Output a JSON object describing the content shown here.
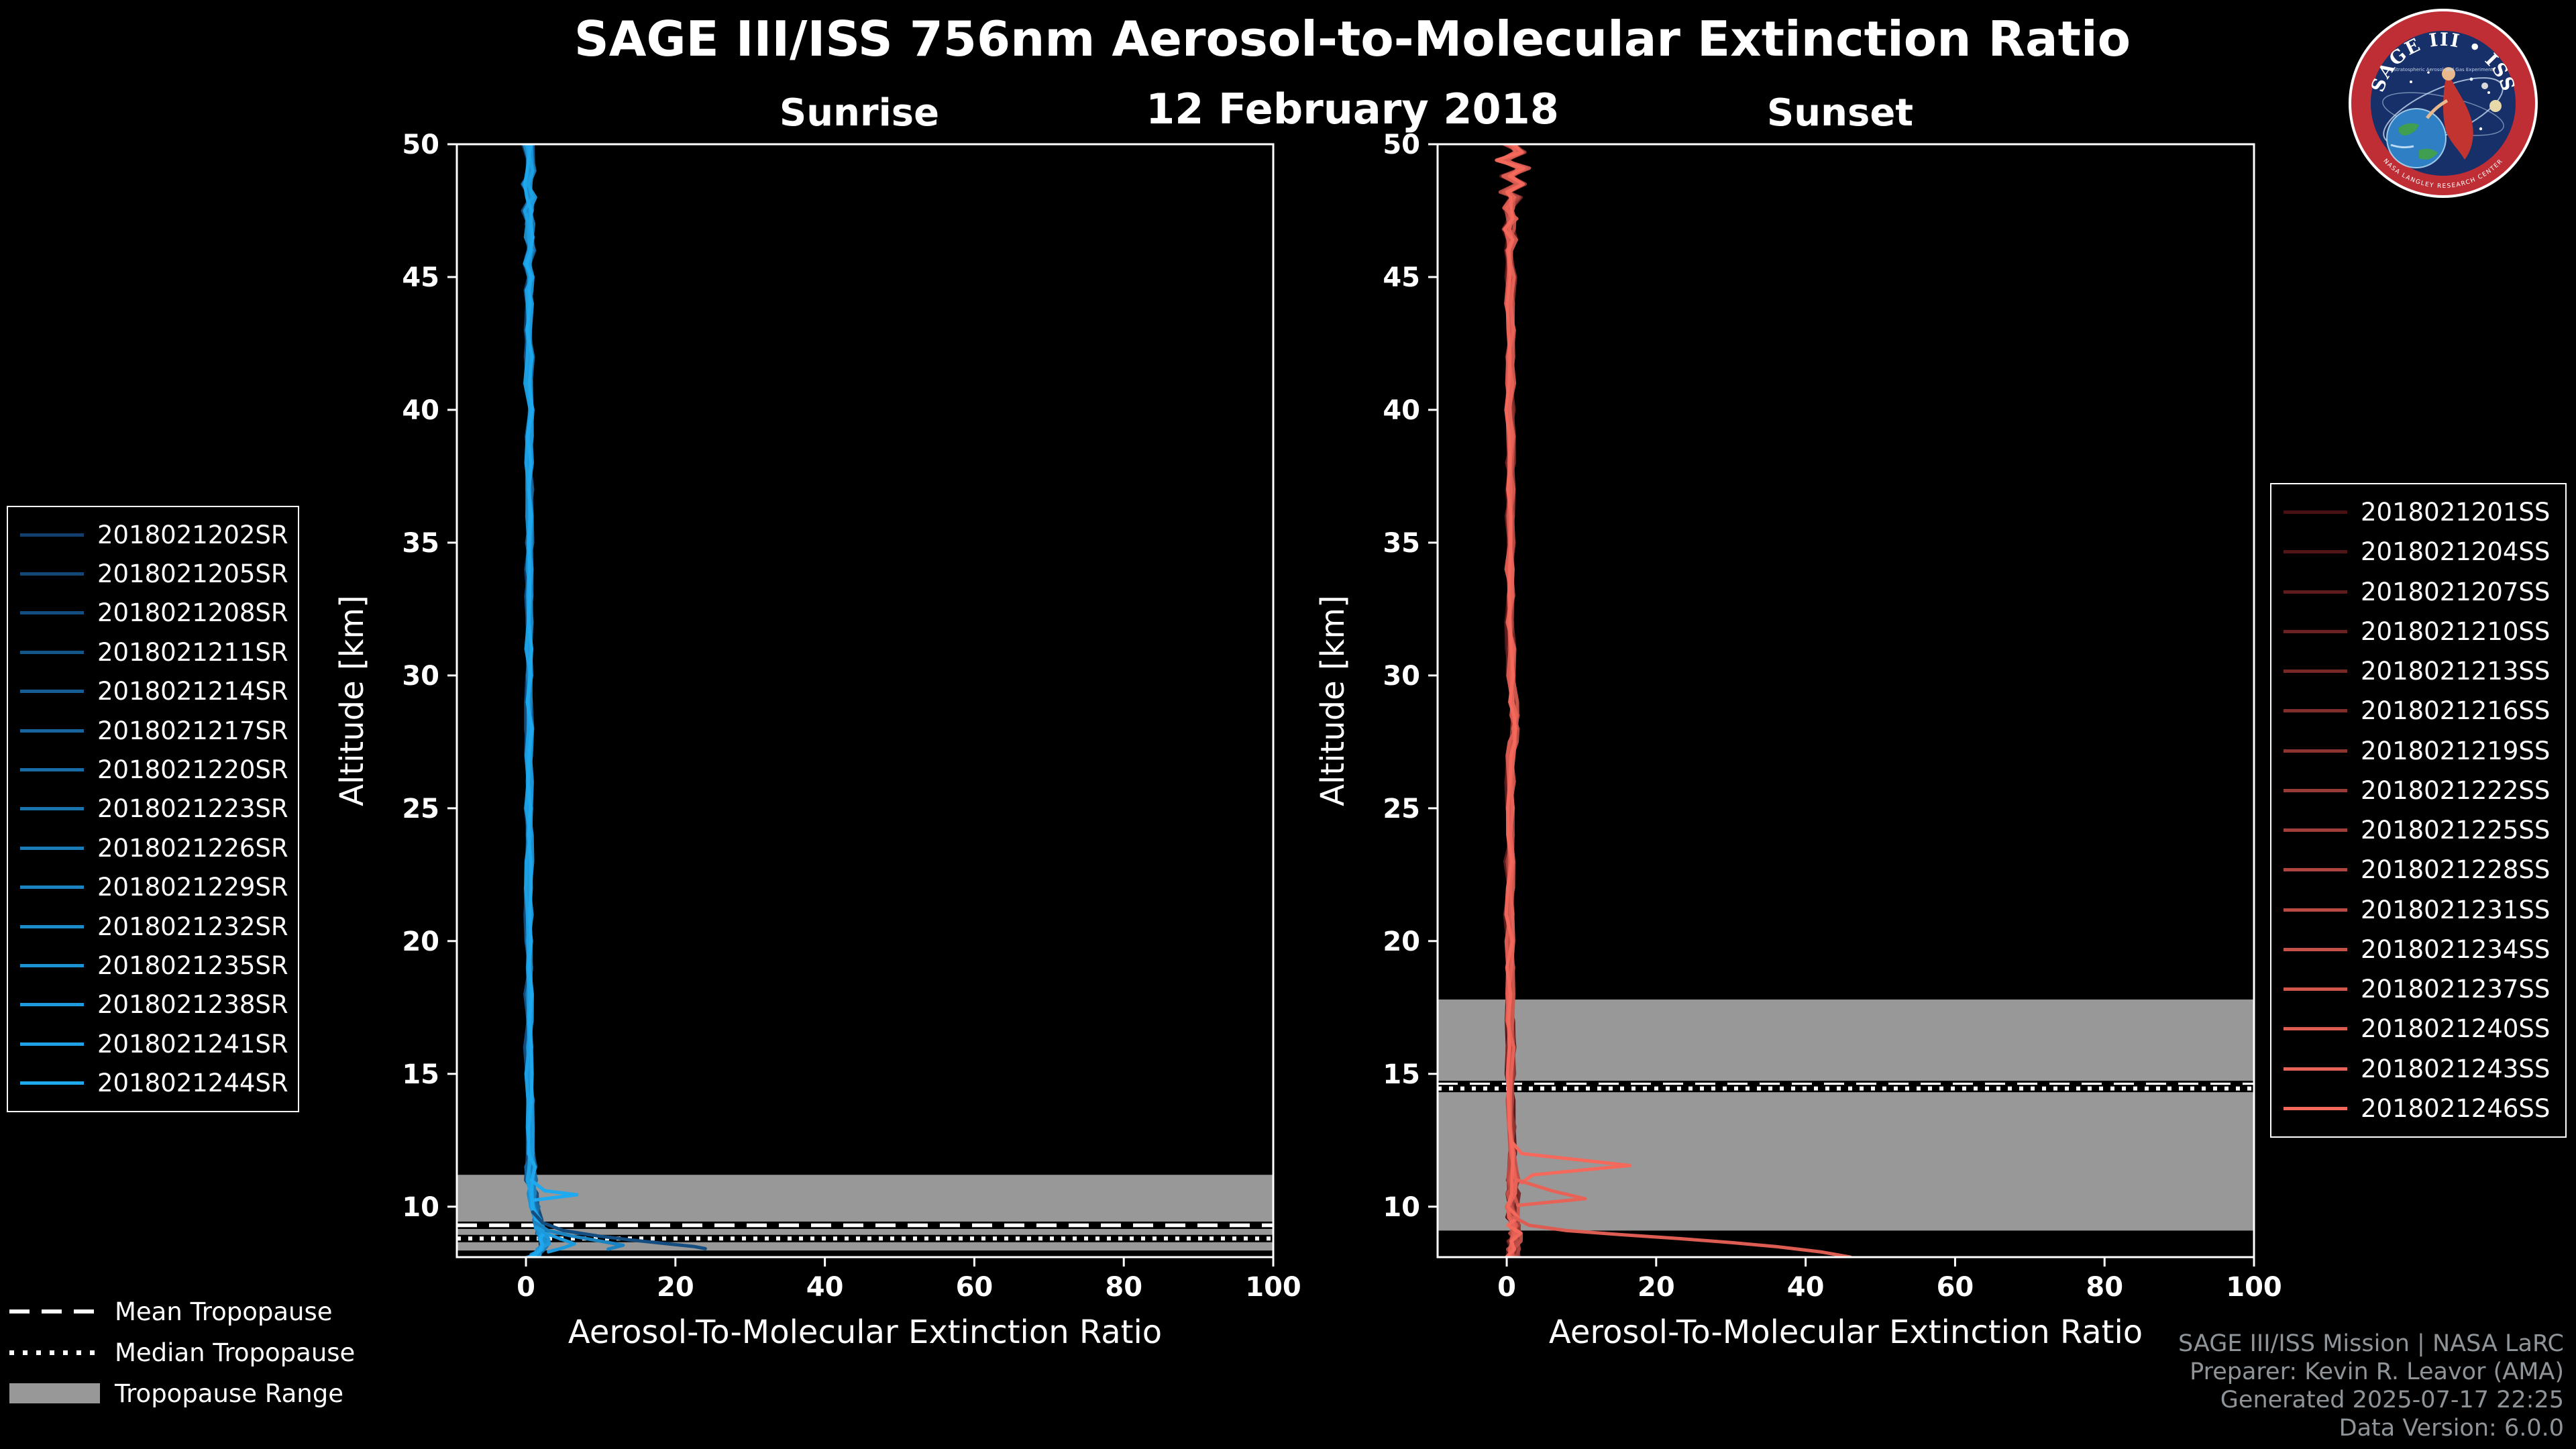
{
  "header": {
    "title": "SAGE III/ISS 756nm Aerosol-to-Molecular Extinction Ratio",
    "date": "12 February 2018"
  },
  "colors": {
    "background": "#000000",
    "frame": "#ffffff",
    "tropopause_band": "#989898",
    "footer_text": "#8f9499"
  },
  "chart_data": [
    {
      "type": "line",
      "panel": "Sunrise",
      "xlabel": "Aerosol-To-Molecular Extinction Ratio",
      "ylabel": "Altitude [km]",
      "xlim": [
        -9.25,
        100
      ],
      "ylim": [
        8.1,
        50
      ],
      "xticks": [
        0,
        20,
        40,
        60,
        80,
        100
      ],
      "yticks": [
        10,
        15,
        20,
        25,
        30,
        35,
        40,
        45,
        50
      ],
      "color_start": "#123f6e",
      "color_end": "#1fa9ee",
      "tropopause": {
        "mean_km": 9.3,
        "median_km": 8.8,
        "range_km": [
          8.35,
          11.2
        ]
      },
      "series_names": [
        "2018021202SR",
        "2018021205SR",
        "2018021208SR",
        "2018021211SR",
        "2018021214SR",
        "2018021217SR",
        "2018021220SR",
        "2018021223SR",
        "2018021226SR",
        "2018021229SR",
        "2018021232SR",
        "2018021235SR",
        "2018021238SR",
        "2018021241SR",
        "2018021244SR"
      ],
      "base_profile": [
        [
          50,
          0.3
        ],
        [
          49,
          0.5
        ],
        [
          48.5,
          0.1
        ],
        [
          48,
          0.6
        ],
        [
          47.5,
          0.2
        ],
        [
          47,
          0.5
        ],
        [
          46.5,
          0.3
        ],
        [
          46,
          0.6
        ],
        [
          45.5,
          0.2
        ],
        [
          45,
          0.7
        ],
        [
          44.5,
          0.3
        ],
        [
          44,
          0.5
        ],
        [
          43,
          0.3
        ],
        [
          42,
          0.5
        ],
        [
          41,
          0.3
        ],
        [
          40,
          0.5
        ],
        [
          39,
          0.4
        ],
        [
          38,
          0.4
        ],
        [
          37,
          0.4
        ],
        [
          36,
          0.4
        ],
        [
          35,
          0.4
        ],
        [
          34,
          0.4
        ],
        [
          33,
          0.4
        ],
        [
          32,
          0.4
        ],
        [
          31,
          0.4
        ],
        [
          30,
          0.4
        ],
        [
          29,
          0.4
        ],
        [
          28,
          0.4
        ],
        [
          27,
          0.4
        ],
        [
          26,
          0.4
        ],
        [
          25,
          0.4
        ],
        [
          24,
          0.4
        ],
        [
          23,
          0.4
        ],
        [
          22,
          0.4
        ],
        [
          21,
          0.4
        ],
        [
          20,
          0.4
        ],
        [
          19,
          0.4
        ],
        [
          18,
          0.4
        ],
        [
          17,
          0.4
        ],
        [
          16,
          0.4
        ],
        [
          15,
          0.4
        ],
        [
          14,
          0.5
        ],
        [
          13,
          0.5
        ],
        [
          12,
          0.6
        ],
        [
          11.5,
          0.6
        ],
        [
          11,
          0.7
        ],
        [
          10.5,
          0.9
        ],
        [
          10,
          1.1
        ],
        [
          9.5,
          1.4
        ],
        [
          9.2,
          1.7
        ],
        [
          9,
          2.0
        ],
        [
          8.8,
          2.4
        ],
        [
          8.6,
          2.6
        ],
        [
          8.4,
          2.0
        ],
        [
          8.2,
          1.2
        ],
        [
          8.1,
          0.8
        ]
      ],
      "features": [
        {
          "series": "2018021244SR",
          "points": [
            [
              11.0,
              0.7
            ],
            [
              10.6,
              2.5
            ],
            [
              10.45,
              6.8
            ],
            [
              10.25,
              1.2
            ]
          ]
        },
        {
          "series": "2018021208SR",
          "points": [
            [
              9.8,
              0.9
            ],
            [
              9.4,
              2.2
            ],
            [
              9.1,
              5
            ],
            [
              8.9,
              9.5
            ],
            [
              8.75,
              14
            ],
            [
              8.6,
              19
            ],
            [
              8.5,
              22.5
            ],
            [
              8.42,
              24
            ]
          ]
        },
        {
          "series": "2018021229SR",
          "points": [
            [
              9.4,
              1.2
            ],
            [
              9.1,
              3
            ],
            [
              8.9,
              6
            ],
            [
              8.7,
              10
            ],
            [
              8.55,
              13
            ],
            [
              8.4,
              11
            ]
          ]
        },
        {
          "series": "2018021238SR",
          "points": [
            [
              9.2,
              1.3
            ],
            [
              9.0,
              2.6
            ],
            [
              8.8,
              4.5
            ],
            [
              8.6,
              6.5
            ],
            [
              8.45,
              5
            ],
            [
              8.3,
              3
            ]
          ]
        }
      ]
    },
    {
      "type": "line",
      "panel": "Sunset",
      "xlabel": "Aerosol-To-Molecular Extinction Ratio",
      "ylabel": "Altitude [km]",
      "xlim": [
        -9.25,
        100
      ],
      "ylim": [
        8.1,
        50
      ],
      "xticks": [
        0,
        20,
        40,
        60,
        80,
        100
      ],
      "yticks": [
        10,
        15,
        20,
        25,
        30,
        35,
        40,
        45,
        50
      ],
      "color_start": "#471013",
      "color_end": "#f4695c",
      "tropopause": {
        "mean_km": 14.6,
        "median_km": 14.45,
        "range_km": [
          9.1,
          17.8
        ]
      },
      "series_names": [
        "2018021201SS",
        "2018021204SS",
        "2018021207SS",
        "2018021210SS",
        "2018021213SS",
        "2018021216SS",
        "2018021219SS",
        "2018021222SS",
        "2018021225SS",
        "2018021228SS",
        "2018021231SS",
        "2018021234SS",
        "2018021237SS",
        "2018021240SS",
        "2018021243SS",
        "2018021246SS"
      ],
      "base_profile": [
        [
          50,
          0.4
        ],
        [
          49.7,
          1.6
        ],
        [
          49.4,
          -0.6
        ],
        [
          49.1,
          2.2
        ],
        [
          48.8,
          0
        ],
        [
          48.5,
          1.8
        ],
        [
          48.2,
          -0.4
        ],
        [
          48,
          1
        ],
        [
          47.6,
          0.3
        ],
        [
          47.2,
          0.8
        ],
        [
          46.8,
          0.2
        ],
        [
          46.4,
          0.7
        ],
        [
          46,
          0.3
        ],
        [
          45,
          0.6
        ],
        [
          44,
          0.4
        ],
        [
          43,
          0.5
        ],
        [
          42,
          0.4
        ],
        [
          41,
          0.5
        ],
        [
          40,
          0.4
        ],
        [
          39,
          0.5
        ],
        [
          38,
          0.4
        ],
        [
          37,
          0.5
        ],
        [
          36,
          0.4
        ],
        [
          35,
          0.5
        ],
        [
          34,
          0.4
        ],
        [
          33,
          0.5
        ],
        [
          32,
          0.4
        ],
        [
          31,
          0.5
        ],
        [
          30,
          0.6
        ],
        [
          29,
          0.9
        ],
        [
          28.5,
          1.1
        ],
        [
          28,
          1.0
        ],
        [
          27.5,
          0.8
        ],
        [
          27,
          0.6
        ],
        [
          26,
          0.5
        ],
        [
          25,
          0.5
        ],
        [
          24,
          0.5
        ],
        [
          23,
          0.4
        ],
        [
          22,
          0.4
        ],
        [
          21,
          0.4
        ],
        [
          20,
          0.4
        ],
        [
          19,
          0.4
        ],
        [
          18,
          0.4
        ],
        [
          17,
          0.4
        ],
        [
          16,
          0.5
        ],
        [
          15,
          0.5
        ],
        [
          14,
          0.5
        ],
        [
          13,
          0.6
        ],
        [
          12,
          0.6
        ],
        [
          11,
          0.7
        ],
        [
          10.5,
          0.7
        ],
        [
          10,
          0.8
        ],
        [
          9.6,
          0.9
        ],
        [
          9.3,
          1.0
        ],
        [
          9,
          1.1
        ],
        [
          8.7,
          1.0
        ],
        [
          8.4,
          0.9
        ],
        [
          8.1,
          0.8
        ]
      ],
      "features": [
        {
          "series": "2018021246SS",
          "points": [
            [
              12.4,
              0.8
            ],
            [
              12.0,
              2
            ],
            [
              11.55,
              16.5
            ],
            [
              11.2,
              3.5
            ],
            [
              10.9,
              2
            ]
          ]
        },
        {
          "series": "2018021243SS",
          "points": [
            [
              11.0,
              1.5
            ],
            [
              10.6,
              6
            ],
            [
              10.3,
              10.5
            ],
            [
              10.05,
              1.5
            ]
          ]
        },
        {
          "series": "2018021240SS",
          "points": [
            [
              9.6,
              1
            ],
            [
              9.3,
              3
            ],
            [
              9.1,
              8
            ],
            [
              8.95,
              15
            ],
            [
              8.8,
              23
            ],
            [
              8.65,
              30
            ],
            [
              8.5,
              36
            ],
            [
              8.3,
              42
            ],
            [
              8.1,
              46
            ]
          ]
        }
      ]
    }
  ],
  "tropopause_legend": {
    "mean": "Mean Tropopause",
    "median": "Median Tropopause",
    "range": "Tropopause Range"
  },
  "footer": {
    "lines": [
      "SAGE III/ISS Mission | NASA LaRC",
      "Preparer: Kevin R. Leavor (AMA)",
      "Generated 2025-07-17 22:25",
      "Data Version: 6.0.0"
    ]
  },
  "logo": {
    "title": "SAGE III • ISS",
    "subtitle": "Stratospheric Aerosol and Gas Experiment",
    "ring_text": "NASA LANGLEY RESEARCH CENTER"
  }
}
